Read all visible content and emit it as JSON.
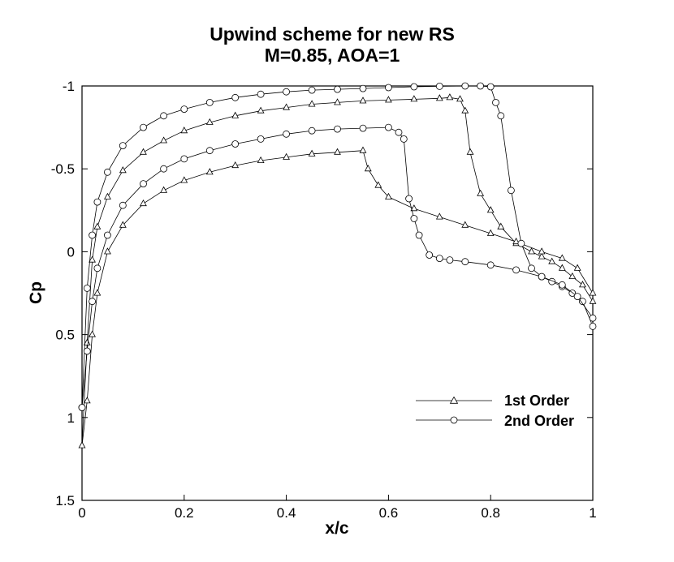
{
  "chart_data": {
    "type": "line",
    "title": "Upwind scheme for new RS",
    "subtitle": "M=0.85, AOA=1",
    "xlabel": "x/c",
    "ylabel": "Cp",
    "xlim": [
      0,
      1
    ],
    "ylim": [
      1.5,
      -1
    ],
    "y_axis_inverted": true,
    "grid": false,
    "legend_position": "bottom-right",
    "x_ticks": [
      "0",
      "0.2",
      "0.4",
      "0.6",
      "0.8",
      "1"
    ],
    "y_ticks": [
      "-1",
      "-0.5",
      "0",
      "0.5",
      "1",
      "1.5"
    ],
    "series": [
      {
        "name": "1st Order",
        "marker": "triangle",
        "upper": {
          "x": [
            0,
            0.01,
            0.02,
            0.03,
            0.05,
            0.08,
            0.12,
            0.16,
            0.2,
            0.25,
            0.3,
            0.35,
            0.4,
            0.45,
            0.5,
            0.55,
            0.6,
            0.65,
            0.7,
            0.72,
            0.74,
            0.75,
            0.76,
            0.78,
            0.8,
            0.82,
            0.85,
            0.88,
            0.9,
            0.92,
            0.94,
            0.96,
            0.98,
            1
          ],
          "y": [
            1.17,
            0.55,
            0.05,
            -0.15,
            -0.33,
            -0.49,
            -0.6,
            -0.67,
            -0.73,
            -0.78,
            -0.82,
            -0.85,
            -0.87,
            -0.89,
            -0.9,
            -0.91,
            -0.915,
            -0.92,
            -0.925,
            -0.93,
            -0.92,
            -0.85,
            -0.6,
            -0.35,
            -0.25,
            -0.15,
            -0.05,
            0.0,
            0.03,
            0.06,
            0.1,
            0.15,
            0.2,
            0.3
          ]
        },
        "lower": {
          "x": [
            0,
            0.01,
            0.02,
            0.03,
            0.05,
            0.08,
            0.12,
            0.16,
            0.2,
            0.25,
            0.3,
            0.35,
            0.4,
            0.45,
            0.5,
            0.55,
            0.56,
            0.58,
            0.6,
            0.65,
            0.7,
            0.75,
            0.8,
            0.85,
            0.9,
            0.94,
            0.97,
            1
          ],
          "y": [
            1.17,
            0.9,
            0.5,
            0.25,
            0.0,
            -0.16,
            -0.29,
            -0.37,
            -0.43,
            -0.48,
            -0.52,
            -0.55,
            -0.57,
            -0.59,
            -0.6,
            -0.61,
            -0.5,
            -0.4,
            -0.33,
            -0.26,
            -0.21,
            -0.16,
            -0.11,
            -0.06,
            0.0,
            0.04,
            0.1,
            0.25
          ]
        }
      },
      {
        "name": "2nd Order",
        "marker": "circle",
        "upper": {
          "x": [
            0,
            0.01,
            0.02,
            0.03,
            0.05,
            0.08,
            0.12,
            0.16,
            0.2,
            0.25,
            0.3,
            0.35,
            0.4,
            0.45,
            0.5,
            0.55,
            0.6,
            0.65,
            0.7,
            0.75,
            0.78,
            0.8,
            0.81,
            0.82,
            0.84,
            0.86,
            0.88,
            0.9,
            0.92,
            0.94,
            0.96,
            0.98,
            1
          ],
          "y": [
            0.94,
            0.22,
            -0.1,
            -0.3,
            -0.48,
            -0.64,
            -0.75,
            -0.82,
            -0.86,
            -0.9,
            -0.93,
            -0.95,
            -0.965,
            -0.975,
            -0.98,
            -0.985,
            -0.99,
            -0.995,
            -0.998,
            -1.0,
            -1.0,
            -0.995,
            -0.9,
            -0.82,
            -0.37,
            -0.05,
            0.1,
            0.15,
            0.18,
            0.21,
            0.25,
            0.3,
            0.45
          ]
        },
        "lower": {
          "x": [
            0,
            0.01,
            0.02,
            0.03,
            0.05,
            0.08,
            0.12,
            0.16,
            0.2,
            0.25,
            0.3,
            0.35,
            0.4,
            0.45,
            0.5,
            0.55,
            0.6,
            0.62,
            0.63,
            0.64,
            0.65,
            0.66,
            0.68,
            0.7,
            0.72,
            0.75,
            0.8,
            0.85,
            0.9,
            0.94,
            0.97,
            1
          ],
          "y": [
            0.94,
            0.6,
            0.3,
            0.1,
            -0.1,
            -0.28,
            -0.41,
            -0.5,
            -0.56,
            -0.61,
            -0.65,
            -0.68,
            -0.71,
            -0.73,
            -0.74,
            -0.745,
            -0.75,
            -0.72,
            -0.68,
            -0.32,
            -0.2,
            -0.1,
            0.02,
            0.04,
            0.05,
            0.06,
            0.08,
            0.11,
            0.15,
            0.2,
            0.27,
            0.4
          ]
        }
      }
    ]
  }
}
